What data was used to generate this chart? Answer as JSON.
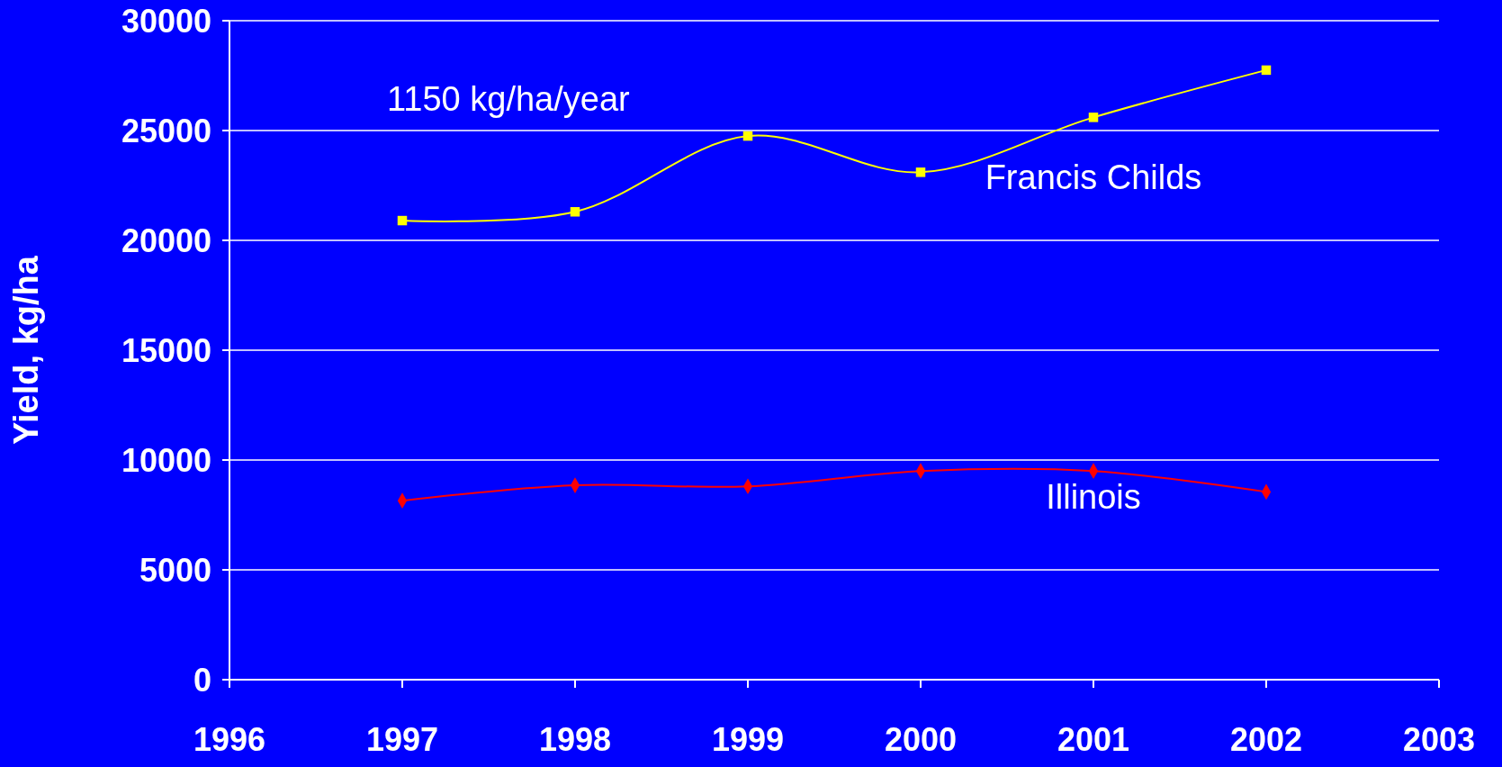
{
  "chart_data": {
    "type": "line",
    "ylabel": "Yield, kg/ha",
    "x": [
      1997,
      1998,
      1999,
      2000,
      2001,
      2002
    ],
    "xlim": [
      1996,
      2003
    ],
    "xticks": [
      1996,
      1997,
      1998,
      1999,
      2000,
      2001,
      2002,
      2003
    ],
    "ylim": [
      0,
      30000
    ],
    "yticks": [
      0,
      5000,
      10000,
      15000,
      20000,
      25000,
      30000
    ],
    "grid": "y",
    "series": [
      {
        "name": "Francis Childs",
        "color": "#ffff00",
        "marker": "square",
        "values": [
          20900,
          21300,
          24750,
          23100,
          25600,
          27750
        ]
      },
      {
        "name": "Illinois",
        "color": "#ff0000",
        "marker": "diamond",
        "values": [
          8150,
          8850,
          8800,
          9500,
          9500,
          8550
        ]
      }
    ],
    "annotations": [
      "1150 kg/ha/year"
    ]
  }
}
